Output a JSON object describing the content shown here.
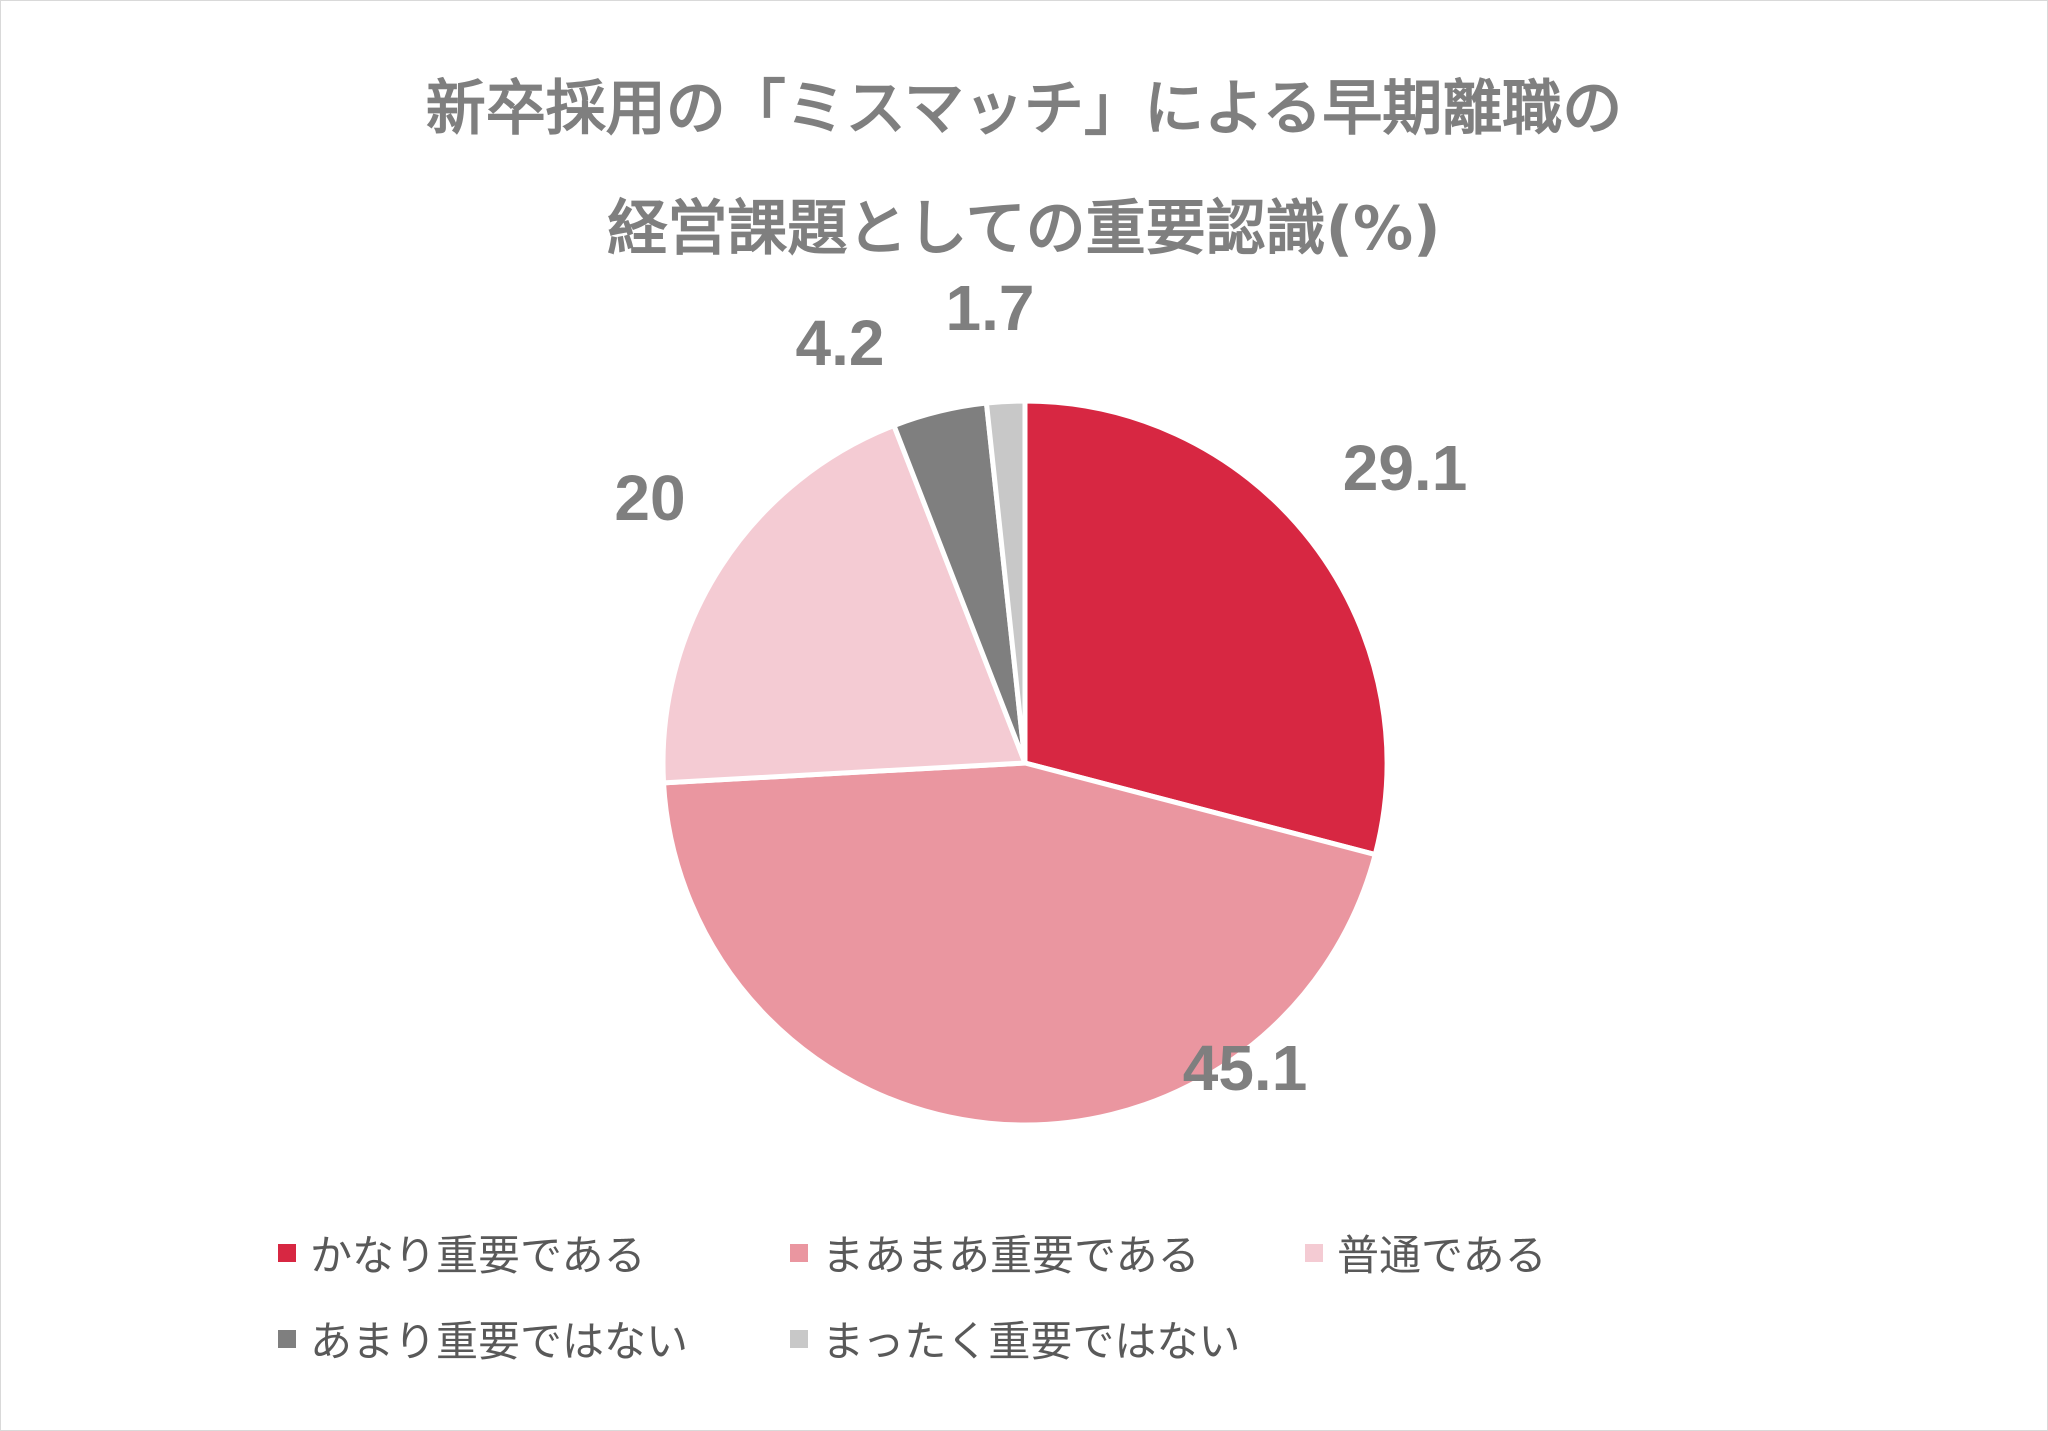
{
  "title": {
    "line1": "新卒採用の「ミスマッチ」による早期離職の",
    "line2": "経営課題としての重要認識(%)"
  },
  "chart_data": {
    "type": "pie",
    "title": "新卒採用の「ミスマッチ」による早期離職の経営課題としての重要認識(%)",
    "start_angle_deg": 0,
    "direction": "clockwise",
    "slices": [
      {
        "label": "かなり重要である",
        "value": 29.1,
        "value_label": "29.1",
        "color": "#d72742"
      },
      {
        "label": "まあまあ重要である",
        "value": 45.1,
        "value_label": "45.1",
        "color": "#ea96a0"
      },
      {
        "label": "普通である",
        "value": 20,
        "value_label": "20",
        "color": "#f4cbd3"
      },
      {
        "label": "あまり重要ではない",
        "value": 4.2,
        "value_label": "4.2",
        "color": "#7f7f7f"
      },
      {
        "label": "まったく重要ではない",
        "value": 1.7,
        "value_label": "1.7",
        "color": "#c8c8c8"
      }
    ],
    "legend_position": "bottom"
  }
}
